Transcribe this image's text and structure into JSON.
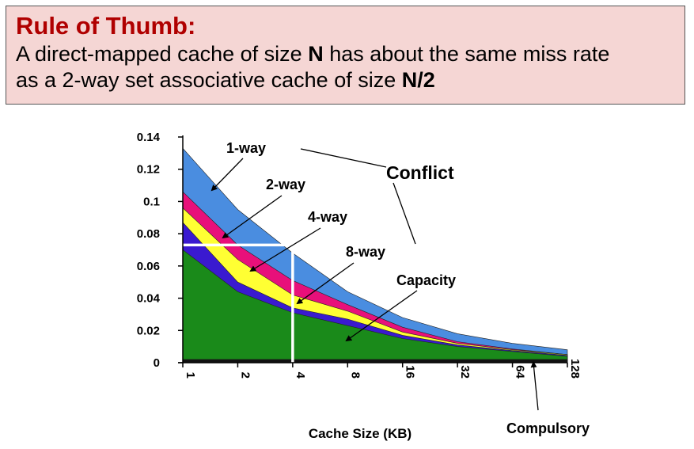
{
  "rule": {
    "title": "Rule of Thumb:",
    "line1_pre": "A direct-mapped cache of size ",
    "line1_bold": "N",
    "line1_post": " has about the same miss rate",
    "line2_pre": "as a 2-way set associative cache of size ",
    "line2_bold": "N/2"
  },
  "chart_data": {
    "type": "area",
    "stacked": true,
    "xlabel": "Cache Size (KB)",
    "ylabel": "",
    "title": "",
    "categories": [
      "1",
      "2",
      "4",
      "8",
      "16",
      "32",
      "64",
      "128"
    ],
    "ylim": [
      0,
      0.14
    ],
    "yticks": [
      0,
      0.02,
      0.04,
      0.06,
      0.08,
      0.1,
      0.12,
      0.14
    ],
    "ytick_labels": [
      "0",
      "0.02",
      "0.04",
      "0.06",
      "0.08",
      "0.1",
      "0.12",
      "0.14"
    ],
    "series": [
      {
        "name": "Compulsory",
        "color": "#101010",
        "values": [
          0.002,
          0.002,
          0.002,
          0.002,
          0.002,
          0.002,
          0.002,
          0.002
        ]
      },
      {
        "name": "Capacity",
        "color": "#1a8a1a",
        "values": [
          0.07,
          0.044,
          0.031,
          0.023,
          0.015,
          0.01,
          0.007,
          0.004
        ]
      },
      {
        "name": "8-way",
        "color": "#3a1ad0",
        "values": [
          0.087,
          0.05,
          0.034,
          0.027,
          0.017,
          0.011,
          0.0075,
          0.0045
        ]
      },
      {
        "name": "4-way",
        "color": "#ffff33",
        "values": [
          0.096,
          0.064,
          0.042,
          0.032,
          0.019,
          0.012,
          0.008,
          0.005
        ]
      },
      {
        "name": "2-way",
        "color": "#e8107a",
        "values": [
          0.106,
          0.073,
          0.051,
          0.036,
          0.022,
          0.013,
          0.0085,
          0.005
        ]
      },
      {
        "name": "1-way",
        "color": "#4a8de0",
        "values": [
          0.133,
          0.095,
          0.068,
          0.044,
          0.028,
          0.018,
          0.012,
          0.008
        ]
      }
    ],
    "annotations": [
      "1-way",
      "2-way",
      "4-way",
      "8-way",
      "Capacity",
      "Conflict",
      "Compulsory"
    ],
    "highlight": {
      "color": "#ffffff",
      "x": "4",
      "y": 0.073
    }
  }
}
